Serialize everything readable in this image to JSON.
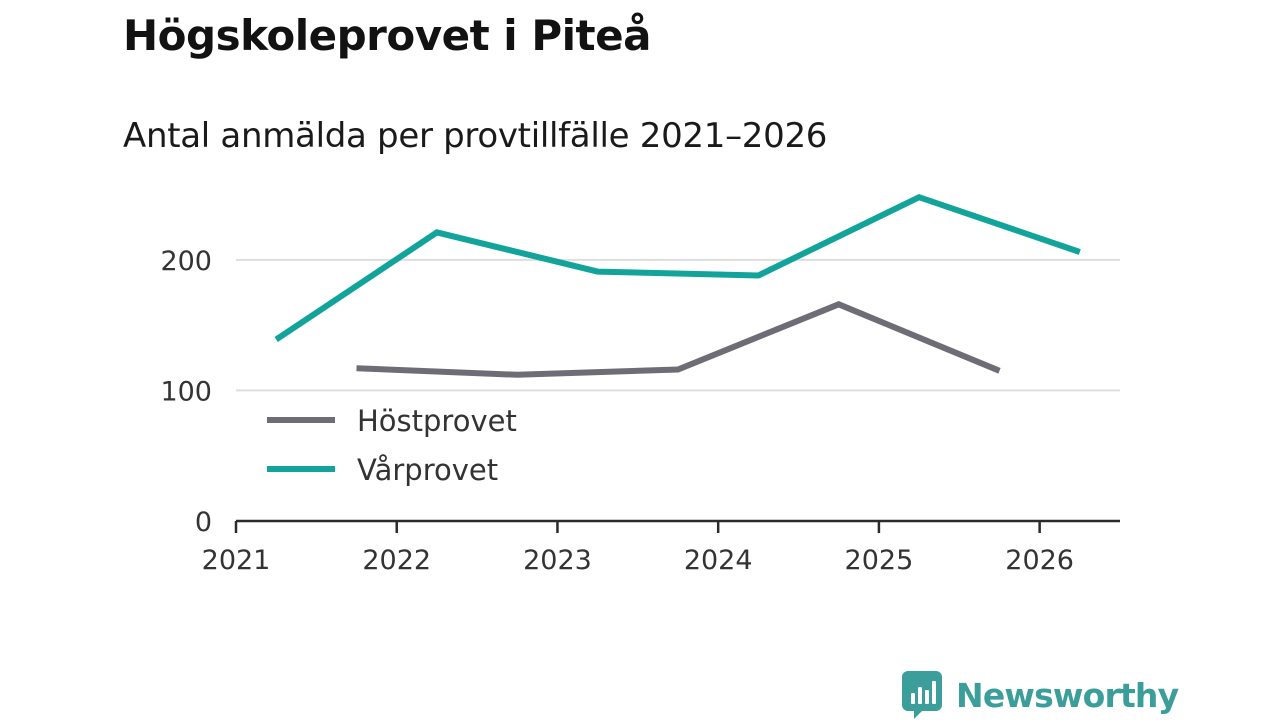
{
  "header": {
    "title": "Högskoleprovet i Piteå",
    "subtitle": "Antal anmälda per provtillfälle 2021–2026"
  },
  "brand": {
    "name": "Newsworthy",
    "icon": "newsworthy-logo-icon",
    "color": "#3c9e9b"
  },
  "chart_data": {
    "type": "line",
    "title": "Högskoleprovet i Piteå",
    "subtitle": "Antal anmälda per provtillfälle 2021–2026",
    "xlabel": "",
    "ylabel": "",
    "xlim": [
      2021,
      2026.5
    ],
    "ylim": [
      0,
      265
    ],
    "x_ticks": [
      2021,
      2022,
      2023,
      2024,
      2025,
      2026
    ],
    "x_tick_labels": [
      "2021",
      "2022",
      "2023",
      "2024",
      "2025",
      "2026"
    ],
    "y_ticks": [
      0,
      100,
      200
    ],
    "y_tick_labels": [
      "0",
      "100",
      "200"
    ],
    "grid": true,
    "legend_position": "middle-left",
    "series": [
      {
        "name": "Höstprovet",
        "color": "#6e6d75",
        "x": [
          2021.75,
          2022.75,
          2023.75,
          2024.75,
          2025.75
        ],
        "values": [
          117,
          112,
          116,
          166,
          115
        ]
      },
      {
        "name": "Vårprovet",
        "color": "#12a39b",
        "x": [
          2021.25,
          2022.25,
          2023.25,
          2024.25,
          2025.25,
          2026.25
        ],
        "values": [
          139,
          221,
          191,
          188,
          248,
          206
        ]
      }
    ]
  }
}
